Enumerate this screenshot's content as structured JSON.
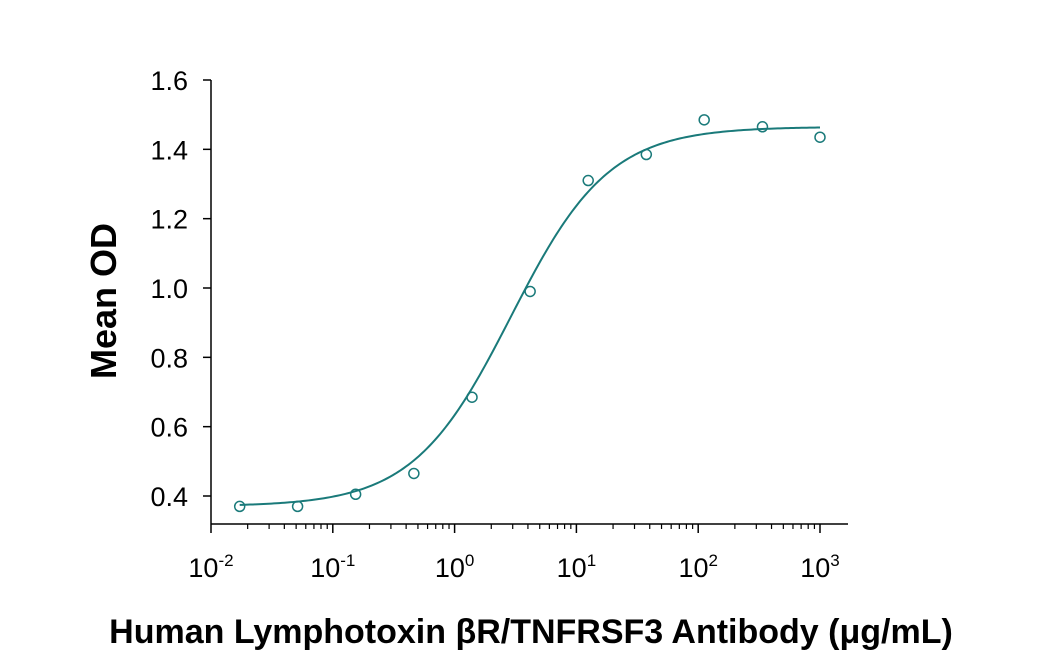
{
  "chart_data": {
    "type": "scatter",
    "title": "",
    "xlabel": "Human Lymphotoxin βR/TNFRSF3 Antibody (μg/mL)",
    "ylabel": "Mean OD",
    "x_scale": "log",
    "xlim": [
      0.01,
      1000
    ],
    "ylim": [
      0.35,
      1.6
    ],
    "grid": false,
    "legend": "none",
    "color": "#1a7a7a",
    "x_ticks": [
      {
        "value": 0.01,
        "base": "10",
        "exp": "-2"
      },
      {
        "value": 0.1,
        "base": "10",
        "exp": "-1"
      },
      {
        "value": 1,
        "base": "10",
        "exp": "0"
      },
      {
        "value": 10,
        "base": "10",
        "exp": "1"
      },
      {
        "value": 100,
        "base": "10",
        "exp": "2"
      },
      {
        "value": 1000,
        "base": "10",
        "exp": "3"
      }
    ],
    "y_ticks": [
      "0.4",
      "0.6",
      "0.8",
      "1.0",
      "1.2",
      "1.4",
      "1.6"
    ],
    "series": [
      {
        "points": [
          {
            "x": 0.0172,
            "y": 0.37
          },
          {
            "x": 0.0514,
            "y": 0.37
          },
          {
            "x": 0.154,
            "y": 0.405
          },
          {
            "x": 0.463,
            "y": 0.465
          },
          {
            "x": 1.39,
            "y": 0.685
          },
          {
            "x": 4.17,
            "y": 0.99
          },
          {
            "x": 12.5,
            "y": 1.31
          },
          {
            "x": 37.5,
            "y": 1.385
          },
          {
            "x": 112,
            "y": 1.485
          },
          {
            "x": 337,
            "y": 1.465
          },
          {
            "x": 1000,
            "y": 1.435
          }
        ],
        "fit": {
          "model": "4PL",
          "bottom": 0.37,
          "top": 1.465,
          "ec50": 2.9,
          "hill": 1.08
        }
      }
    ]
  }
}
